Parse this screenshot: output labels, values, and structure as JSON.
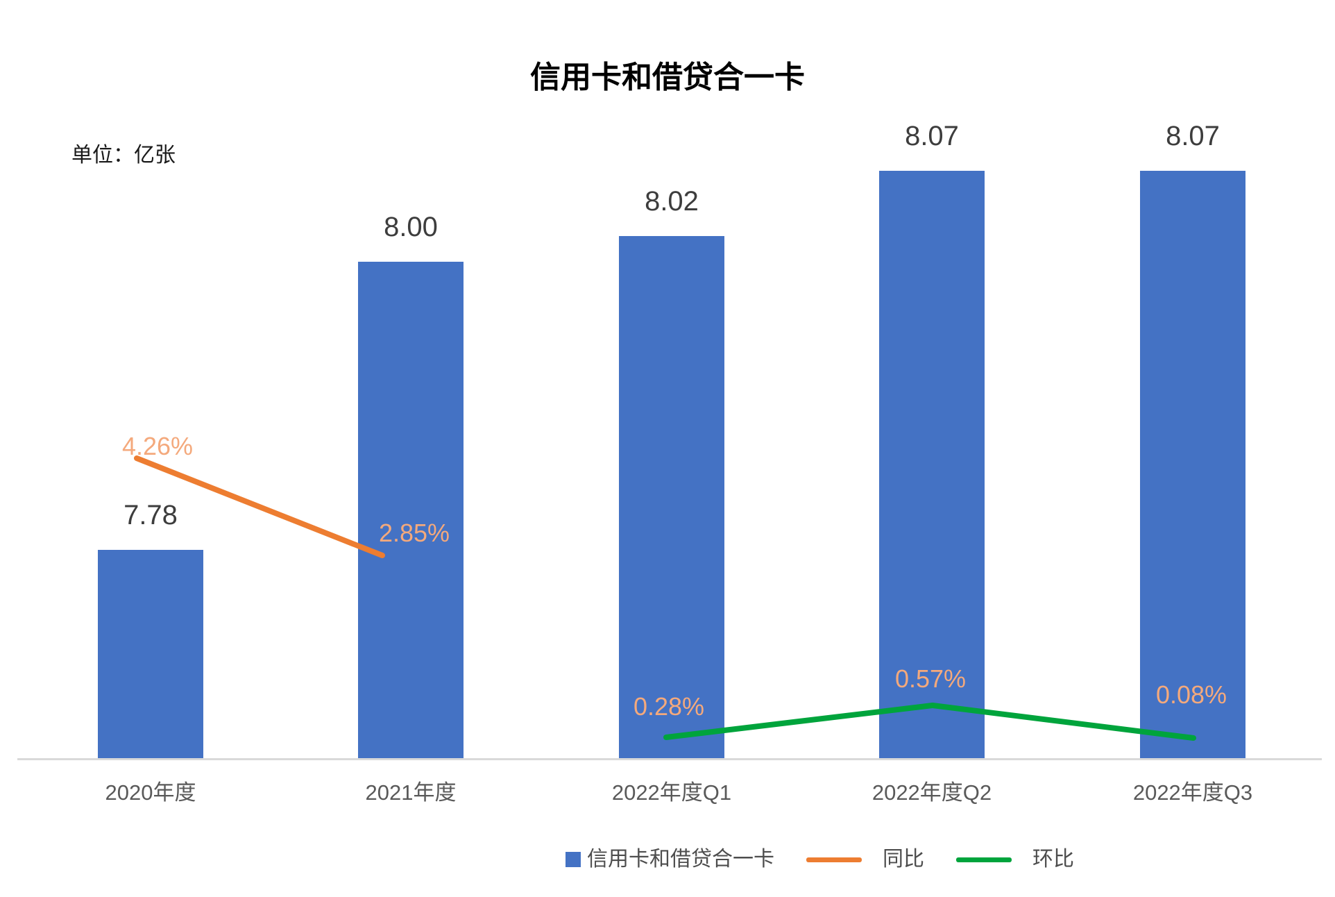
{
  "chart": {
    "title": "信用卡和借贷合一卡",
    "unit_label": "单位：亿张"
  },
  "chart_data": {
    "type": "bar",
    "title": "信用卡和借贷合一卡",
    "unit": "亿张",
    "categories": [
      "2020年度",
      "2021年度",
      "2022年度Q1",
      "2022年度Q2",
      "2022年度Q3"
    ],
    "series": [
      {
        "name": "信用卡和借贷合一卡",
        "kind": "bar",
        "color": "#4472C4",
        "values": [
          7.78,
          8.0,
          8.02,
          8.07,
          8.07
        ],
        "labels": [
          "7.78",
          "8.00",
          "8.02",
          "8.07",
          "8.07"
        ],
        "label_color": "#3d3d3d"
      },
      {
        "name": "同比",
        "kind": "line",
        "unit": "%",
        "color": "#ED7D31",
        "label_color": "#F4A97C",
        "values": [
          4.26,
          2.85,
          null,
          null,
          null
        ],
        "labels": [
          "4.26%",
          "2.85%",
          null,
          null,
          null
        ]
      },
      {
        "name": "环比",
        "kind": "line",
        "unit": "%",
        "color": "#00A43C",
        "label_color": "#F4A97C",
        "values": [
          null,
          null,
          0.28,
          0.57,
          0.08
        ],
        "labels": [
          null,
          null,
          "0.28%",
          "0.57%",
          "0.08%"
        ]
      }
    ],
    "legend_position": "bottom",
    "grid": false,
    "axes": {
      "x_visible": true,
      "y_visible": false,
      "baseline_color": "#D9D9D9"
    }
  },
  "legend": {
    "items": [
      {
        "key": "cards",
        "label": "信用卡和借贷合一卡",
        "marker": "square",
        "color": "#4472C4"
      },
      {
        "key": "yoy",
        "label": "同比",
        "marker": "line",
        "color": "#ED7D31"
      },
      {
        "key": "qoq",
        "label": "环比",
        "marker": "line",
        "color": "#00A43C"
      }
    ]
  }
}
